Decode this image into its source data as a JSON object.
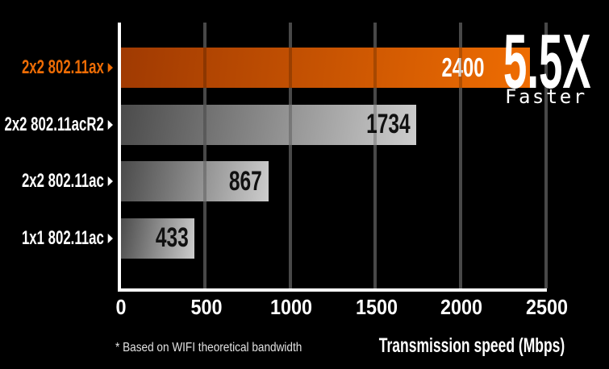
{
  "colors": {
    "background": "#000000",
    "accent_orange": "#e8690b",
    "bar_gray_dark": "#4b4b4b",
    "bar_gray_light": "#cdcdcd",
    "grid": "#5a5a5a",
    "axis": "#ffffff",
    "highlight_label": "#ed6c05"
  },
  "chart_data": {
    "type": "bar",
    "orientation": "horizontal",
    "categories": [
      "2x2 802.11ax",
      "2x2 802.11acR2",
      "2x2 802.11ac",
      "1x1 802.11ac"
    ],
    "values": [
      2400,
      1734,
      867,
      433
    ],
    "highlight_index": 0,
    "xlabel": "Transmission speed (Mbps)",
    "xticks": [
      0,
      500,
      1000,
      1500,
      2000,
      2500
    ],
    "xlim": [
      0,
      2500
    ],
    "grid": true,
    "legend": false
  },
  "annotation": {
    "multiplier": "5.5X",
    "caption": "Faster"
  },
  "footnote": "* Based on WIFI theoretical bandwidth"
}
